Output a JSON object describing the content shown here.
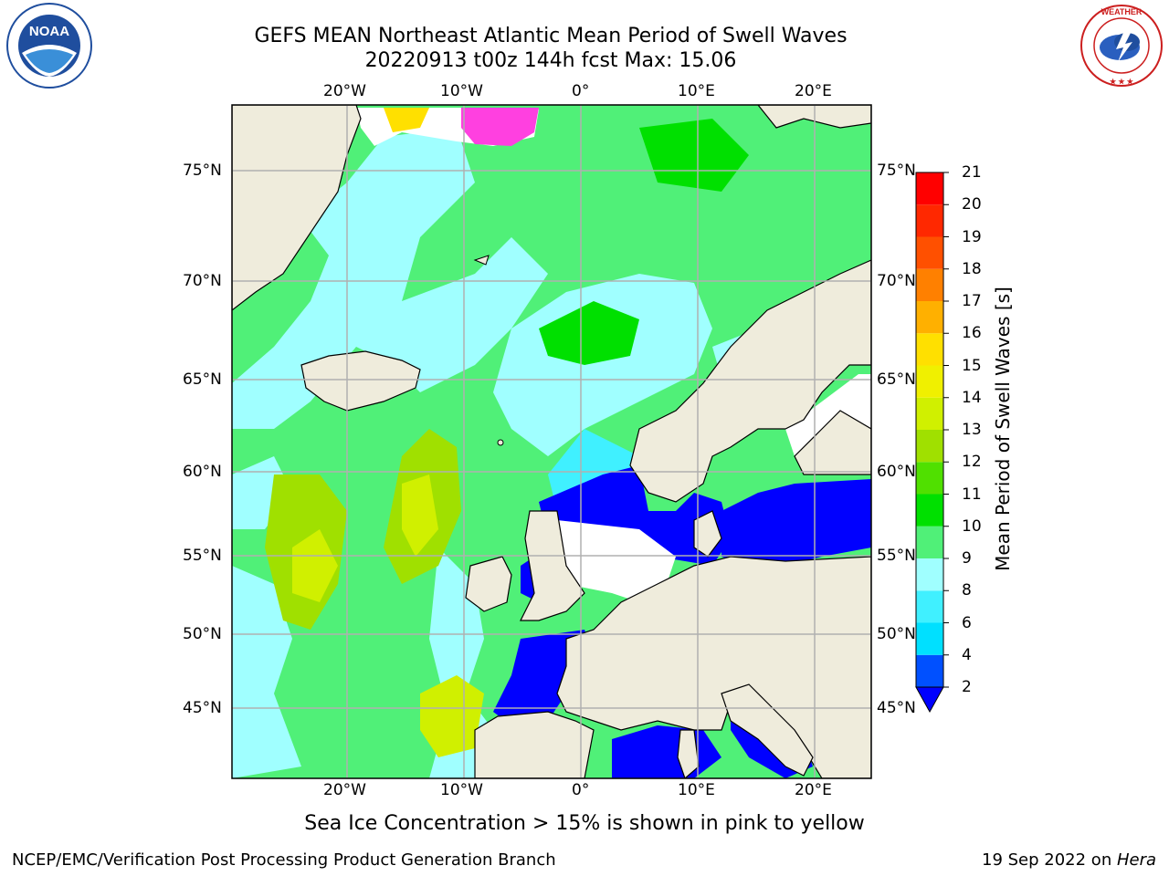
{
  "title": {
    "line1": "GEFS MEAN Northeast Atlantic Mean Period of Swell Waves",
    "line2": "20220913 t00z 144h fcst   Max: 15.06"
  },
  "logos": {
    "left": "NOAA",
    "right": "NATIONAL WEATHER SERVICE"
  },
  "map": {
    "lon_labels": [
      "20°W",
      "10°W",
      "0°",
      "10°E",
      "20°E"
    ],
    "lat_labels": [
      "75°N",
      "70°N",
      "65°N",
      "60°N",
      "55°N",
      "50°N",
      "45°N"
    ],
    "land_color": "#efecdc",
    "grid_color": "#b0b0b0"
  },
  "colorbar": {
    "label": "Mean Period of Swell Waves [s]",
    "ticks": [
      "2",
      "4",
      "6",
      "8",
      "9",
      "10",
      "11",
      "12",
      "13",
      "14",
      "15",
      "16",
      "17",
      "18",
      "19",
      "20",
      "21"
    ],
    "colors": [
      "#0050ff",
      "#00e0ff",
      "#40f0ff",
      "#a0ffff",
      "#50f078",
      "#00e000",
      "#50e000",
      "#a0e000",
      "#d0f000",
      "#f0f000",
      "#ffe000",
      "#ffb000",
      "#ff8000",
      "#ff5000",
      "#ff2800",
      "#ff0000"
    ],
    "under_color": "#0000ff"
  },
  "footer": {
    "note": "Sea Ice Concentration > 15% is shown in pink to yellow",
    "credit_left": "NCEP/EMC/Verification Post Processing Product Generation Branch",
    "credit_right_date": "19 Sep 2022 on ",
    "credit_right_machine": "Hera"
  }
}
